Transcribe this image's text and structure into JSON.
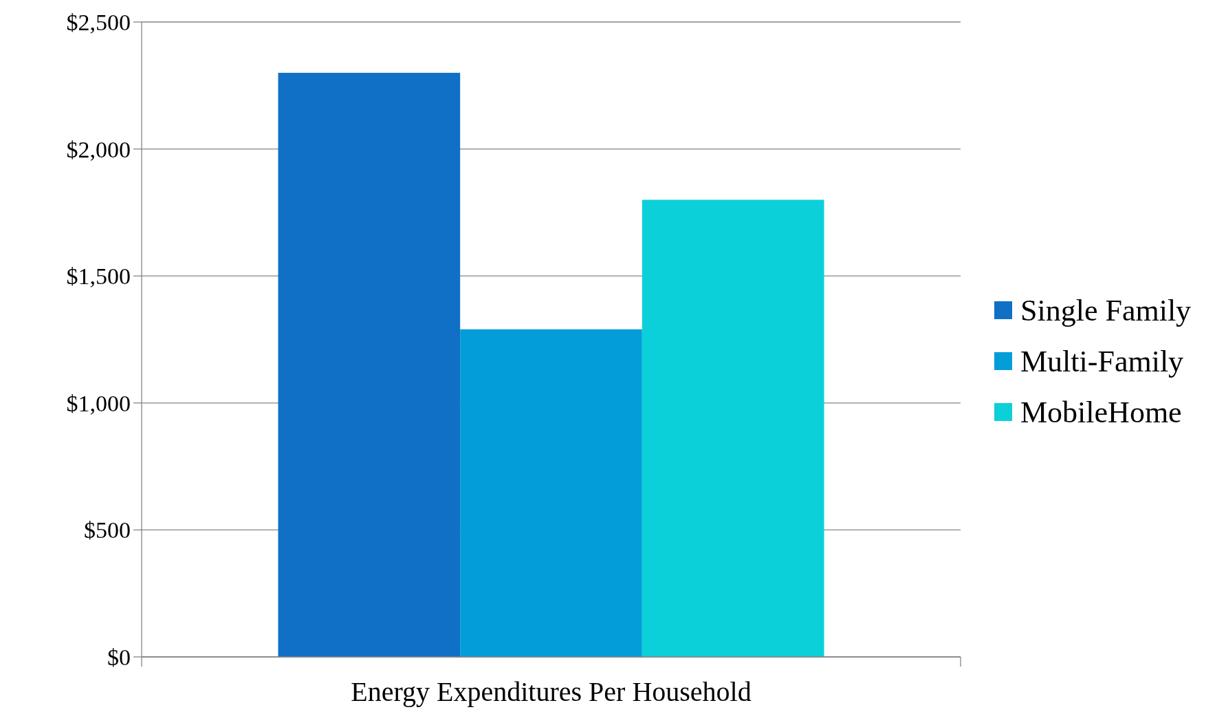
{
  "chart_data": {
    "type": "bar",
    "categories": [
      "Energy Expenditures Per Household"
    ],
    "series": [
      {
        "name": "Single Family",
        "color": "#0f70c6",
        "values": [
          2300
        ]
      },
      {
        "name": "Multi-Family",
        "color": "#039dd9",
        "values": [
          1290
        ]
      },
      {
        "name": "MobileHome",
        "color": "#0cd0d9",
        "values": [
          1800
        ]
      }
    ],
    "ylim": [
      0,
      2500
    ],
    "yticks": [
      {
        "value": 0,
        "label": "$0"
      },
      {
        "value": 500,
        "label": "$500"
      },
      {
        "value": 1000,
        "label": "$1,000"
      },
      {
        "value": 1500,
        "label": "$1,500"
      },
      {
        "value": 2000,
        "label": "$2,000"
      },
      {
        "value": 2500,
        "label": "$2,500"
      }
    ],
    "grid": "y",
    "legend": "right"
  }
}
